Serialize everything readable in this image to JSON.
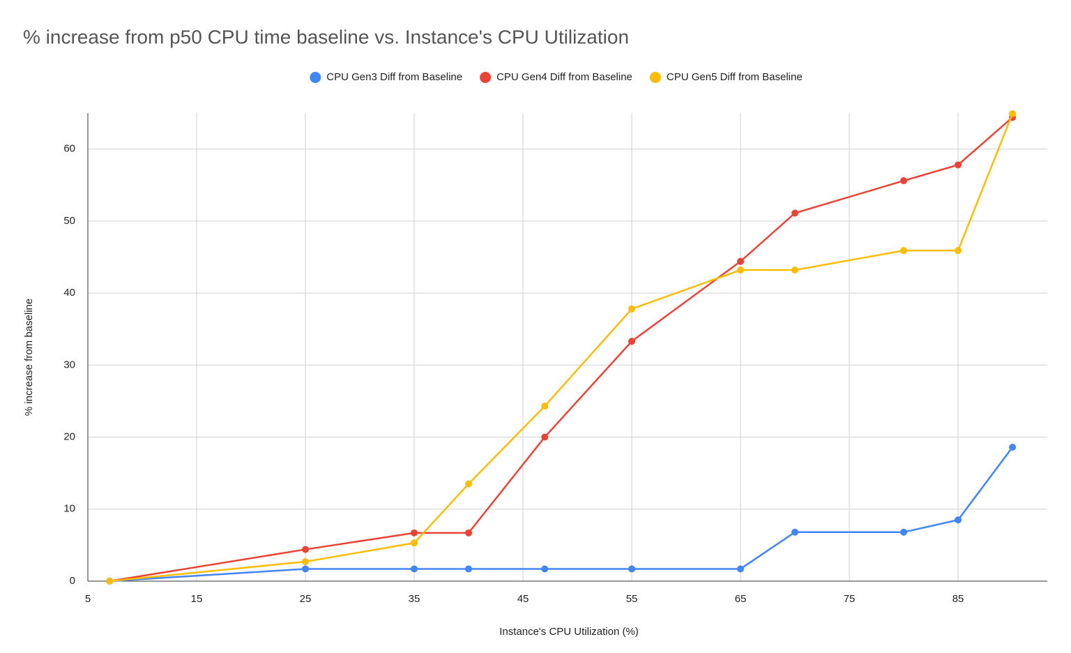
{
  "chart_data": {
    "type": "line",
    "title": "%  increase from p50 CPU time baseline vs. Instance's CPU Utilization",
    "x_label": "Instance's CPU Utilization (%)",
    "y_label": "% increase from baseline",
    "x": [
      7,
      25,
      35,
      40,
      47,
      55,
      65,
      70,
      80,
      85,
      90
    ],
    "series": [
      {
        "name": "CPU Gen3 Diff from Baseline",
        "color": "#4285f4",
        "values": [
          0,
          1.7,
          1.7,
          1.7,
          1.7,
          1.7,
          1.7,
          6.8,
          6.8,
          8.5,
          18.6
        ]
      },
      {
        "name": "CPU Gen4 Diff from Baseline",
        "color": "#ea4335",
        "values": [
          0,
          4.4,
          6.7,
          6.7,
          20,
          33.3,
          44.4,
          51.1,
          55.6,
          57.8,
          64.4
        ]
      },
      {
        "name": "CPU Gen5 Diff from Baseline",
        "color": "#fbbc04",
        "values": [
          0,
          2.7,
          5.3,
          13.5,
          24.3,
          37.8,
          43.2,
          43.2,
          45.9,
          45.9,
          64.9
        ]
      }
    ],
    "xlim": [
      5,
      93.2
    ],
    "ylim": [
      0,
      65
    ],
    "xticks": [
      5,
      15,
      25,
      35,
      45,
      55,
      65,
      75,
      85
    ],
    "yticks": [
      0,
      10,
      20,
      30,
      40,
      50,
      60
    ],
    "grid": true,
    "legend": "top"
  }
}
